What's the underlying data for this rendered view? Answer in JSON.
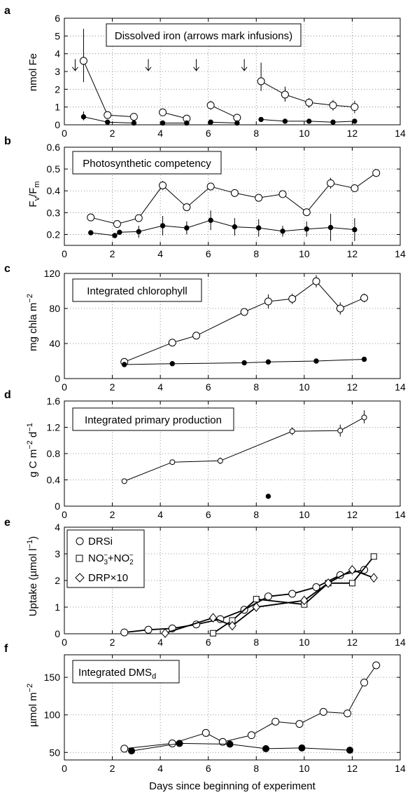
{
  "figure": {
    "xlabel": "Days since beginning of experiment",
    "xlim": [
      0,
      14
    ],
    "xticks": [
      "0",
      "2",
      "4",
      "6",
      "8",
      "10",
      "12",
      "14"
    ]
  },
  "chart_data": [
    {
      "panel": "a",
      "type": "line",
      "title": "Dissolved iron (arrows mark infusions)",
      "ylabel": "nmol Fe",
      "ylim": [
        0,
        6
      ],
      "yticks": [
        "0",
        "1",
        "2",
        "3",
        "4",
        "5",
        "6"
      ],
      "grid": true,
      "arrows_x": [
        0.45,
        3.5,
        5.5,
        7.5
      ],
      "series": [
        {
          "marker": "open-circle",
          "segments": [
            [
              [
                0.8,
                3.6
              ],
              [
                1.8,
                0.55
              ],
              [
                2.9,
                0.45
              ]
            ],
            [
              [
                4.1,
                0.7
              ],
              [
                5.1,
                0.35
              ]
            ],
            [
              [
                6.1,
                1.1
              ],
              [
                7.2,
                0.4
              ]
            ],
            [
              [
                8.2,
                2.45
              ],
              [
                9.2,
                1.7
              ],
              [
                10.2,
                1.25
              ],
              [
                11.2,
                1.1
              ],
              [
                12.1,
                1.0
              ]
            ]
          ],
          "errors": [
            [
              0.8,
              2.4,
              5.4
            ],
            [
              4.1,
              0.55,
              0.85
            ],
            [
              6.1,
              0.85,
              1.35
            ],
            [
              8.2,
              1.9,
              3.5
            ],
            [
              9.2,
              1.3,
              2.15
            ],
            [
              10.2,
              0.95,
              1.5
            ],
            [
              11.2,
              0.8,
              1.4
            ],
            [
              12.1,
              0.65,
              1.35
            ]
          ]
        },
        {
          "marker": "filled-circle",
          "segments": [
            [
              [
                0.8,
                0.45
              ],
              [
                1.8,
                0.15
              ],
              [
                2.9,
                0.1
              ]
            ],
            [
              [
                4.1,
                0.1
              ],
              [
                5.1,
                0.1
              ]
            ],
            [
              [
                6.1,
                0.15
              ],
              [
                7.2,
                0.1
              ]
            ],
            [
              [
                8.2,
                0.3
              ],
              [
                9.2,
                0.2
              ],
              [
                10.2,
                0.2
              ],
              [
                11.2,
                0.15
              ],
              [
                12.1,
                0.2
              ]
            ]
          ],
          "errors": [
            [
              0.8,
              0.25,
              0.75
            ]
          ]
        }
      ]
    },
    {
      "panel": "b",
      "type": "line",
      "title": "Photosynthetic competency",
      "ylabel_main": "F",
      "ylabel_sub1": "v",
      "ylabel_mid": "/F",
      "ylabel_sub2": "m",
      "ylim": [
        0.15,
        0.6
      ],
      "yticks": [
        "0.2",
        "0.3",
        "0.4",
        "0.5",
        "0.6"
      ],
      "grid": true,
      "series": [
        {
          "marker": "open-circle",
          "segments": [
            [
              [
                1.1,
                0.278
              ],
              [
                2.2,
                0.248
              ],
              [
                3.1,
                0.275
              ],
              [
                4.1,
                0.425
              ],
              [
                5.1,
                0.325
              ],
              [
                6.1,
                0.42
              ],
              [
                7.1,
                0.39
              ],
              [
                8.1,
                0.368
              ],
              [
                9.1,
                0.385
              ],
              [
                10.1,
                0.302
              ],
              [
                11.1,
                0.435
              ],
              [
                12.1,
                0.412
              ],
              [
                13,
                0.482
              ]
            ]
          ],
          "errors": [
            [
              4.1,
              0.405,
              0.445
            ],
            [
              11.1,
              0.41,
              0.46
            ]
          ]
        },
        {
          "marker": "filled-circle",
          "segments": [
            [
              [
                1.1,
                0.208
              ],
              [
                2.1,
                0.195
              ],
              [
                2.3,
                0.21
              ],
              [
                3.1,
                0.213
              ],
              [
                4.1,
                0.24
              ],
              [
                5.1,
                0.23
              ],
              [
                6.1,
                0.265
              ],
              [
                7.1,
                0.235
              ],
              [
                8.1,
                0.23
              ],
              [
                9.1,
                0.215
              ],
              [
                10.1,
                0.225
              ],
              [
                11.1,
                0.232
              ],
              [
                12.1,
                0.222
              ]
            ]
          ],
          "errors": [
            [
              3.1,
              0.185,
              0.24
            ],
            [
              4.1,
              0.195,
              0.285
            ],
            [
              5.1,
              0.2,
              0.26
            ],
            [
              6.1,
              0.22,
              0.31
            ],
            [
              7.1,
              0.195,
              0.275
            ],
            [
              8.1,
              0.19,
              0.27
            ],
            [
              9.1,
              0.19,
              0.24
            ],
            [
              10.1,
              0.19,
              0.26
            ],
            [
              11.1,
              0.17,
              0.295
            ],
            [
              12.1,
              0.17,
              0.275
            ]
          ]
        }
      ]
    },
    {
      "panel": "c",
      "type": "line",
      "title": "Integrated chlorophyll",
      "ylabel_main": "mg chla m",
      "ylabel_sup": "−2",
      "ylim": [
        0,
        120
      ],
      "yticks": [
        "0",
        "40",
        "80",
        "120"
      ],
      "grid": true,
      "series": [
        {
          "marker": "open-circle",
          "segments": [
            [
              [
                2.5,
                19
              ],
              [
                4.5,
                41
              ],
              [
                5.5,
                49
              ],
              [
                7.5,
                76
              ],
              [
                8.5,
                88
              ],
              [
                9.5,
                91
              ],
              [
                10.5,
                111
              ],
              [
                11.5,
                80
              ],
              [
                12.5,
                92
              ]
            ]
          ],
          "errors": [
            [
              8.5,
              80,
              96
            ],
            [
              9.5,
              85,
              97
            ],
            [
              10.5,
              104,
              118
            ],
            [
              11.5,
              73,
              87
            ],
            [
              12.5,
              87,
              97
            ]
          ]
        },
        {
          "marker": "filled-circle",
          "segments": [
            [
              [
                2.5,
                16
              ],
              [
                4.5,
                17
              ],
              [
                7.5,
                18
              ],
              [
                8.5,
                19
              ],
              [
                10.5,
                20
              ],
              [
                12.5,
                22
              ]
            ]
          ],
          "errors": []
        }
      ]
    },
    {
      "panel": "d",
      "type": "line",
      "title": "Integrated primary production",
      "ylabel_a": "g C m",
      "ylabel_sup1": "−2",
      "ylabel_b": " d",
      "ylabel_sup2": "−1",
      "ylim": [
        0,
        1.6
      ],
      "yticks": [
        "0",
        "0.4",
        "0.8",
        "1.2",
        "1.6"
      ],
      "grid": true,
      "series": [
        {
          "marker": "open-circle-small",
          "segments": [
            [
              [
                2.5,
                0.38
              ],
              [
                4.5,
                0.67
              ],
              [
                6.5,
                0.69
              ],
              [
                9.5,
                1.14
              ],
              [
                11.5,
                1.15
              ],
              [
                12.5,
                1.35
              ]
            ]
          ],
          "errors": [
            [
              6.5,
              0.64,
              0.74
            ],
            [
              9.5,
              1.08,
              1.2
            ],
            [
              11.5,
              1.06,
              1.24
            ],
            [
              12.5,
              1.26,
              1.46
            ]
          ]
        },
        {
          "marker": "filled-circle",
          "segments": [
            [
              [
                8.5,
                0.15
              ]
            ]
          ],
          "errors": []
        }
      ]
    },
    {
      "panel": "e",
      "type": "line",
      "ylabel_a": "Uptake (µmol l",
      "ylabel_sup": "−1",
      "ylabel_b": ")",
      "ylim": [
        0,
        4
      ],
      "yticks": [
        "0",
        "1",
        "2",
        "3",
        "4"
      ],
      "grid": true,
      "legend_position": "top-left",
      "series": [
        {
          "name": "DRSi",
          "marker": "open-circle",
          "segments": [
            [
              [
                2.5,
                0.05
              ],
              [
                3.5,
                0.15
              ],
              [
                4.5,
                0.2
              ],
              [
                5.5,
                0.35
              ],
              [
                6.5,
                0.55
              ],
              [
                7.5,
                0.9
              ],
              [
                8.5,
                1.4
              ],
              [
                9.5,
                1.5
              ],
              [
                10.5,
                1.75
              ],
              [
                11.5,
                2.2
              ],
              [
                12.5,
                2.4
              ]
            ]
          ],
          "errors": []
        },
        {
          "name": "NO3+NO2",
          "legend_parts": {
            "a": "NO",
            "sub1": "3",
            "sup1": "−",
            "mid": "+NO",
            "sub2": "2",
            "sup2": "−"
          },
          "marker": "open-square",
          "segments": [
            [
              [
                6.2,
                0.02
              ],
              [
                7,
                0.5
              ],
              [
                8,
                1.3
              ],
              [
                10,
                1.1
              ],
              [
                11,
                1.9
              ],
              [
                12,
                1.9
              ],
              [
                12.9,
                2.9
              ]
            ]
          ],
          "errors": []
        },
        {
          "name": "DRP×10",
          "marker": "open-diamond",
          "segments": [
            [
              [
                4.2,
                0.02
              ],
              [
                6.2,
                0.6
              ],
              [
                7,
                0.3
              ],
              [
                8,
                1.0
              ],
              [
                10,
                1.25
              ],
              [
                11,
                1.9
              ],
              [
                12,
                2.4
              ],
              [
                12.9,
                2.1
              ]
            ]
          ],
          "errors": []
        }
      ]
    },
    {
      "panel": "f",
      "type": "line",
      "title_main": "Integrated DMS",
      "title_sub": "d",
      "ylabel_a": "µmol m",
      "ylabel_sup": "−2",
      "ylim": [
        40,
        180
      ],
      "yticks": [
        "50",
        "100",
        "150"
      ],
      "grid": true,
      "series": [
        {
          "marker": "open-circle",
          "segments": [
            [
              [
                2.5,
                55
              ],
              [
                4.5,
                62
              ],
              [
                5.9,
                76
              ],
              [
                6.6,
                64
              ],
              [
                7.8,
                73
              ],
              [
                8.8,
                91
              ],
              [
                9.8,
                88
              ],
              [
                10.8,
                104
              ],
              [
                11.8,
                102
              ],
              [
                12.5,
                143
              ],
              [
                13,
                166
              ]
            ]
          ],
          "errors": []
        },
        {
          "marker": "filled-circle-large",
          "segments": [
            [
              [
                2.8,
                52
              ],
              [
                4.8,
                62
              ],
              [
                6.9,
                61
              ],
              [
                8.4,
                55
              ],
              [
                9.9,
                56
              ],
              [
                11.9,
                53
              ]
            ]
          ],
          "errors": []
        }
      ]
    }
  ]
}
